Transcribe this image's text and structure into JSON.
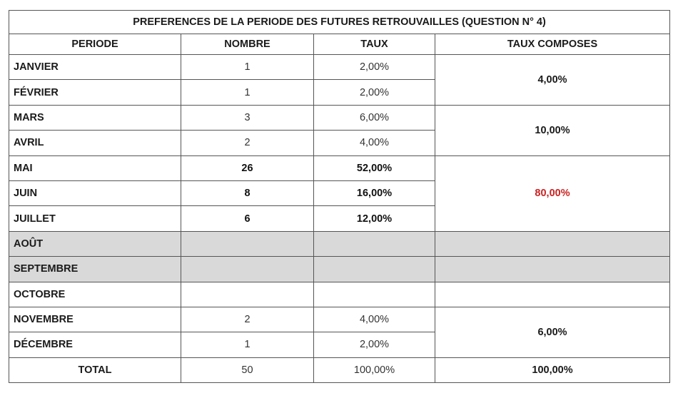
{
  "title": "PREFERENCES DE LA PERIODE DES FUTURES RETROUVAILLES (QUESTION N° 4)",
  "headers": {
    "periode": "PERIODE",
    "nombre": "NOMBRE",
    "taux": "TAUX",
    "taux_composes": "TAUX COMPOSES"
  },
  "rows": [
    {
      "periode": "JANVIER",
      "nombre": "1",
      "taux": "2,00%"
    },
    {
      "periode": "FÉVRIER",
      "nombre": "1",
      "taux": "2,00%"
    },
    {
      "periode": "MARS",
      "nombre": "3",
      "taux": "6,00%"
    },
    {
      "periode": "AVRIL",
      "nombre": "2",
      "taux": "4,00%"
    },
    {
      "periode": "MAI",
      "nombre": "26",
      "taux": "52,00%"
    },
    {
      "periode": "JUIN",
      "nombre": "8",
      "taux": "16,00%"
    },
    {
      "periode": "JUILLET",
      "nombre": "6",
      "taux": "12,00%"
    },
    {
      "periode": "AOÛT",
      "nombre": "",
      "taux": ""
    },
    {
      "periode": "SEPTEMBRE",
      "nombre": "",
      "taux": ""
    },
    {
      "periode": "OCTOBRE",
      "nombre": "",
      "taux": ""
    },
    {
      "periode": "NOVEMBRE",
      "nombre": "2",
      "taux": "4,00%"
    },
    {
      "periode": "DÉCEMBRE",
      "nombre": "1",
      "taux": "2,00%"
    }
  ],
  "composes": {
    "jan_fev": "4,00%",
    "mars_avril": "10,00%",
    "mai_juil": "80,00%",
    "nov_dec": "6,00%"
  },
  "total": {
    "label": "TOTAL",
    "nombre": "50",
    "taux": "100,00%",
    "taux_composes": "100,00%"
  },
  "colors": {
    "highlight_red": "#cc2222",
    "grey_row": "#d9d9d9"
  }
}
